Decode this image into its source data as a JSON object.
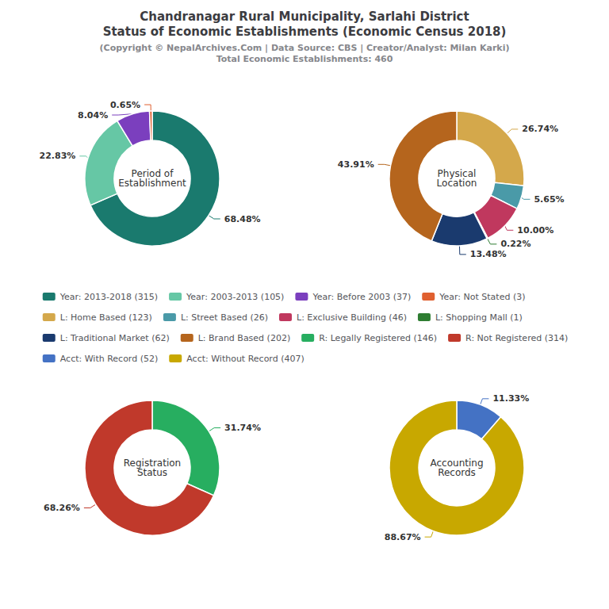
{
  "title": "Chandranagar Rural Municipality, Sarlahi District\nStatus of Economic Establishments (Economic Census 2018)",
  "subtitle": "(Copyright © NepalArchives.Com | Data Source: CBS | Creator/Analyst: Milan Karki)\nTotal Economic Establishments: 460",
  "chart_data": [
    {
      "type": "pie",
      "title": "Period of\nEstablishment",
      "categories": [
        "Year: 2013-2018 (315)",
        "Year: 2003-2013 (105)",
        "Year: Before 2003 (37)",
        "Year: Not Stated (3)"
      ],
      "values": [
        68.48,
        22.83,
        8.04,
        0.65
      ],
      "value_labels": [
        "68.48%",
        "22.83%",
        "8.04%",
        "0.65%"
      ],
      "colors": [
        "#1a7a6e",
        "#66c7a5",
        "#7b3fbe",
        "#e06030"
      ],
      "data_labels": true,
      "legend": "center"
    },
    {
      "type": "pie",
      "title": "Physical\nLocation",
      "categories": [
        "L: Home Based (123)",
        "L: Street Based (26)",
        "L: Exclusive Building (46)",
        "L: Shopping Mall (1)",
        "L: Traditional Market (62)",
        "L: Brand Based (202)"
      ],
      "values": [
        26.74,
        5.65,
        10.0,
        0.22,
        13.48,
        43.91
      ],
      "value_labels": [
        "26.74%",
        "5.65%",
        "10.00%",
        "0.22%",
        "13.48%",
        "43.91%"
      ],
      "colors": [
        "#d4a84b",
        "#4a9aa8",
        "#c0385e",
        "#2e7d32",
        "#1a3a6e",
        "#b5651d"
      ],
      "data_labels": true,
      "legend": "center"
    },
    {
      "type": "pie",
      "title": "Registration\nStatus",
      "categories": [
        "R: Legally Registered (146)",
        "R: Not Registered (314)"
      ],
      "values": [
        31.74,
        68.26
      ],
      "value_labels": [
        "31.74%",
        "68.26%"
      ],
      "colors": [
        "#27ae60",
        "#c0392b"
      ],
      "data_labels": true,
      "legend": "center"
    },
    {
      "type": "pie",
      "title": "Accounting\nRecords",
      "categories": [
        "Acct: With Record (52)",
        "Acct: Without Record (407)"
      ],
      "values": [
        11.33,
        88.67
      ],
      "value_labels": [
        "11.33%",
        "88.67%"
      ],
      "colors": [
        "#4472c4",
        "#c8a800"
      ],
      "data_labels": true,
      "legend": "center"
    }
  ]
}
